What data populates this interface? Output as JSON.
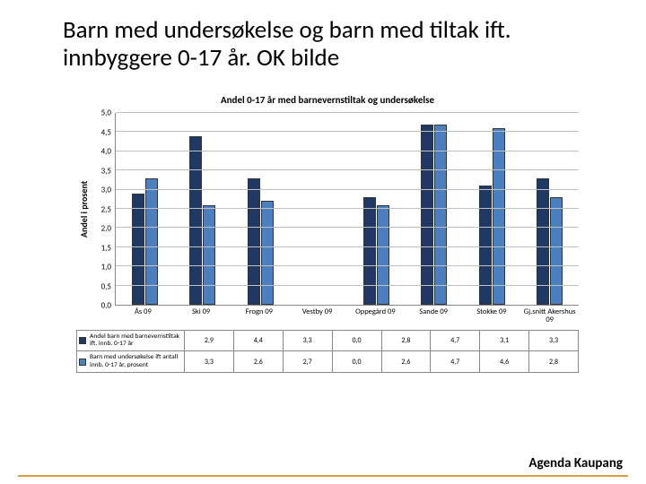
{
  "slide": {
    "title": "Barn med undersøkelse og barn med tiltak ift. innbyggere 0-17 år. OK bilde",
    "footer": "Agenda Kaupang"
  },
  "chart": {
    "type": "bar",
    "title": "Andel  0-17 år med barnevernstiltak og undersøkelse",
    "y_label": "Andel i prosent",
    "ylim": [
      0,
      5.0
    ],
    "ytick_step": 0.5,
    "categories": [
      "Ås 09",
      "Ski 09",
      "Frogn 09",
      "Vestby 09",
      "Oppegård 09",
      "Sande 09",
      "Stokke 09",
      "Gj.snitt Akershus 09"
    ],
    "series": [
      {
        "name": "Andel barn med barnevernstiltak ift. innb. 0-17 år",
        "color": "#1f3864",
        "values": [
          2.9,
          4.4,
          3.3,
          0.0,
          2.8,
          4.7,
          3.1,
          3.3
        ]
      },
      {
        "name": "Barn med undersøkelse ift antall innb. 0-17 år, prosent",
        "color": "#4a7fc0",
        "values": [
          3.3,
          2.6,
          2.7,
          0.0,
          2.6,
          4.7,
          4.6,
          2.8
        ]
      }
    ],
    "background_color": "#ffffff",
    "grid_color": "#c0c0c0",
    "bar_border": "#333333",
    "y_ticks_decimal": 1
  },
  "colors": {
    "footer_line": "#d9a03a"
  }
}
